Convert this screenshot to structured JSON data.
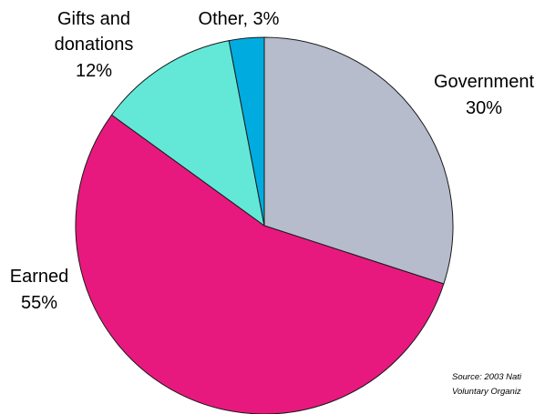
{
  "chart_data": {
    "type": "pie",
    "slices": [
      {
        "label": "Government",
        "value": 30,
        "value_label": "30%",
        "color": "#b6bccb"
      },
      {
        "label": "Earned",
        "value": 55,
        "value_label": "55%",
        "color": "#e8197e"
      },
      {
        "label": "Gifts and donations",
        "value": 12,
        "value_label": "12%",
        "color": "#63e8d8"
      },
      {
        "label": "Other",
        "value": 3,
        "value_label": "Other, 3%",
        "color": "#00acdf"
      }
    ],
    "labels": {
      "government_line1": "Government",
      "government_line2": "30%",
      "earned_line1": "Earned",
      "earned_line2": "55%",
      "gifts_line1": "Gifts and",
      "gifts_line2": "donations",
      "gifts_line3": "12%",
      "other": "Other, 3%"
    },
    "source_line1": "Source: 2003 Nati",
    "source_line2": "Voluntary Organiz"
  }
}
